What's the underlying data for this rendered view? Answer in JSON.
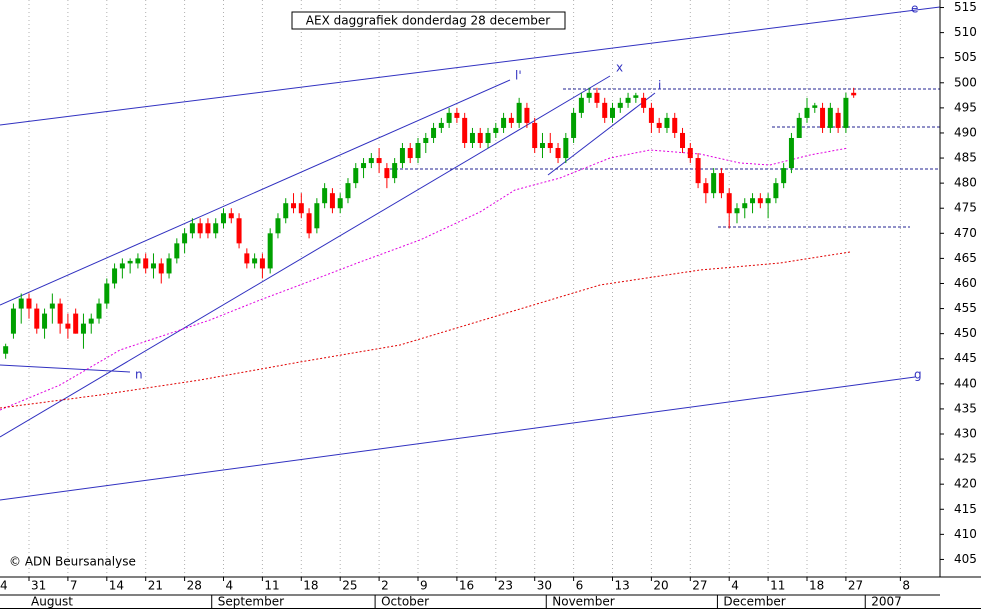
{
  "chart_data": {
    "type": "candlestick",
    "title": "AEX daggrafiek donderdag 28 december",
    "copyright": "© ADN Beursanalyse",
    "categories": [
      "4",
      null,
      null,
      null,
      null,
      "31",
      null,
      null,
      null,
      null,
      "7",
      null,
      null,
      null,
      null,
      "14",
      null,
      null,
      null,
      null,
      "21",
      null,
      null,
      null,
      null,
      "28",
      null,
      null,
      null,
      null,
      "4",
      null,
      null,
      null,
      null,
      "11",
      null,
      null,
      null,
      null,
      "18",
      null,
      null,
      null,
      null,
      "25",
      null,
      null,
      null,
      null,
      "2",
      null,
      null,
      null,
      null,
      "9",
      null,
      null,
      null,
      null,
      "16",
      null,
      null,
      null,
      null,
      "23",
      null,
      null,
      null,
      null,
      "30",
      null,
      null,
      null,
      null,
      "6",
      null,
      null,
      null,
      null,
      "13",
      null,
      null,
      null,
      null,
      "20",
      null,
      null,
      null,
      null,
      "27",
      null,
      null,
      null,
      null,
      "4",
      null,
      null,
      null,
      null,
      "11",
      null,
      null,
      null,
      null,
      "18",
      null,
      null,
      null,
      null,
      "27",
      null,
      null,
      null,
      null,
      null,
      null,
      "8"
    ],
    "months": [
      "August",
      "September",
      "October",
      "November",
      "December",
      "2007"
    ],
    "open": [
      null,
      null,
      446,
      450,
      455,
      457,
      455,
      451,
      455,
      456,
      452,
      454,
      450,
      452,
      453,
      456,
      460,
      463,
      464,
      464,
      465,
      463,
      464,
      462,
      465,
      468,
      470,
      472,
      472,
      470,
      472,
      474,
      473,
      466,
      464,
      465,
      463,
      470,
      473,
      476,
      476,
      474,
      471,
      476,
      478,
      475,
      477,
      480,
      483,
      484,
      485,
      483,
      481,
      484,
      487,
      485,
      488,
      489,
      491,
      492,
      494,
      493,
      488,
      490,
      488,
      490,
      491,
      493,
      492,
      495,
      492,
      487,
      488,
      487,
      485,
      489,
      494,
      497,
      498,
      496,
      493,
      495,
      496,
      497,
      497,
      495,
      492,
      491,
      493,
      490,
      487,
      485,
      480,
      478,
      482,
      478,
      474,
      475,
      476,
      477,
      476,
      477,
      480,
      483,
      489,
      493,
      495,
      495,
      491,
      494,
      491,
      498,
      null,
      null,
      null,
      null,
      null,
      null
    ],
    "high": [
      null,
      null,
      448,
      456,
      458,
      458,
      456,
      455,
      458,
      457,
      454,
      455,
      454,
      454,
      457,
      461,
      464,
      465,
      465,
      466,
      466,
      466,
      465,
      466,
      469,
      471,
      473,
      473,
      473,
      473,
      475,
      475,
      474,
      467,
      466,
      466,
      471,
      474,
      477,
      478,
      478,
      475,
      477,
      480,
      479,
      478,
      481,
      484,
      485,
      486,
      487,
      484,
      485,
      488,
      488,
      489,
      490,
      492,
      493,
      495,
      495,
      494,
      491,
      491,
      491,
      492,
      494,
      494,
      497,
      496,
      493,
      490,
      490,
      488,
      490,
      495,
      498,
      499,
      499,
      497,
      496,
      497,
      498,
      498,
      498,
      496,
      493,
      494,
      494,
      491,
      488,
      486,
      481,
      483,
      483,
      479,
      476,
      477,
      478,
      478,
      478,
      481,
      484,
      490,
      494,
      497,
      496,
      496,
      496,
      495,
      498,
      499,
      null,
      null,
      null,
      null,
      null,
      null
    ],
    "low": [
      null,
      null,
      445,
      449,
      452,
      453,
      450,
      449,
      452,
      450,
      449,
      450,
      447,
      450,
      452,
      455,
      459,
      461,
      462,
      463,
      462,
      461,
      460,
      461,
      464,
      466,
      469,
      469,
      469,
      469,
      471,
      472,
      467,
      463,
      463,
      461,
      462,
      469,
      472,
      474,
      473,
      469,
      470,
      475,
      474,
      474,
      476,
      479,
      481,
      483,
      482,
      479,
      480,
      483,
      484,
      484,
      486,
      488,
      490,
      491,
      492,
      487,
      487,
      487,
      487,
      489,
      490,
      491,
      491,
      491,
      486,
      485,
      486,
      484,
      484,
      488,
      493,
      496,
      495,
      492,
      492,
      494,
      495,
      496,
      494,
      490,
      490,
      490,
      489,
      486,
      484,
      479,
      476,
      477,
      477,
      471,
      472,
      473,
      474,
      475,
      473,
      476,
      479,
      482,
      489,
      492,
      494,
      490,
      490,
      490,
      490,
      497,
      null,
      null,
      null,
      null,
      null,
      null
    ],
    "close": [
      null,
      null,
      447.5,
      455,
      457,
      455,
      451,
      454,
      456,
      452,
      451,
      450,
      452,
      453,
      456,
      460,
      463,
      464,
      464.5,
      465,
      463,
      464,
      462,
      465,
      468,
      470,
      472,
      470,
      470,
      472,
      474,
      473,
      468,
      464,
      465,
      463,
      470,
      473,
      476,
      475,
      474,
      470,
      476,
      479,
      475,
      477,
      480,
      483,
      484,
      485,
      484,
      481,
      484,
      487,
      485,
      488,
      489,
      491,
      492,
      494,
      493,
      488,
      490,
      488,
      490,
      491,
      493,
      492,
      496,
      492,
      487,
      488,
      487,
      485,
      489,
      494,
      497,
      498,
      496,
      493,
      495,
      496,
      497,
      497.5,
      495,
      492,
      491,
      493,
      490,
      487,
      485,
      480,
      478,
      482,
      478,
      474,
      475,
      476,
      477,
      476,
      477,
      480,
      483,
      489,
      493,
      495,
      495.5,
      491,
      495,
      491,
      497,
      497.5,
      null,
      null,
      null,
      null,
      null,
      null
    ],
    "up_color": "#00a000",
    "down_color": "#ff0000",
    "ylim": [
      401.5,
      516.5
    ],
    "yticks": [
      405,
      410,
      415,
      420,
      425,
      430,
      435,
      440,
      445,
      450,
      455,
      460,
      465,
      470,
      475,
      480,
      485,
      490,
      495,
      500,
      505,
      510,
      515
    ],
    "grid": "vertical",
    "annotations": [
      "e",
      "l'",
      "x",
      "i",
      "n",
      "g"
    ]
  }
}
